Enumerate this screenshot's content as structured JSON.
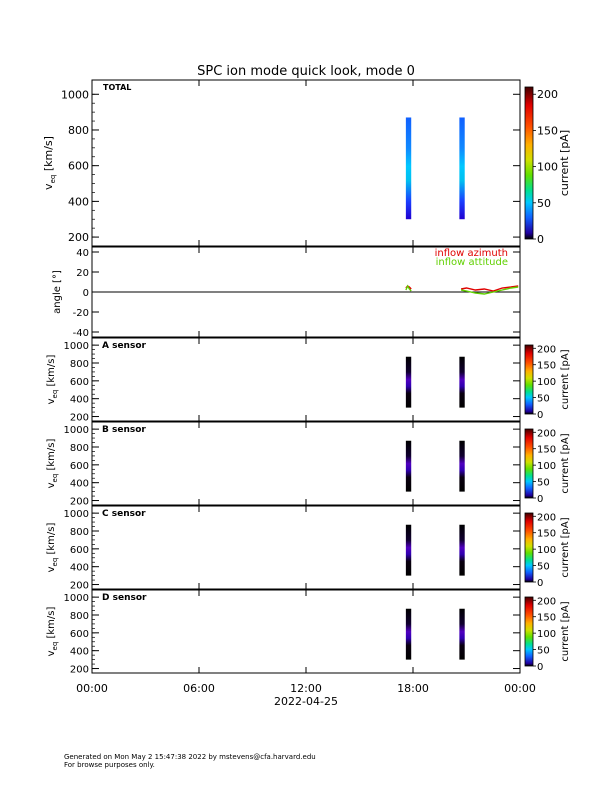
{
  "title": "SPC ion mode quick look, mode 0",
  "footer": {
    "line1": "Generated on Mon May  2 15:47:38 2022 by mstevens@cfa.harvard.edu",
    "line2": "For browse purposes only."
  },
  "time_axis": {
    "ticks": [
      "00:00",
      "06:00",
      "12:00",
      "18:00",
      "00:00"
    ],
    "date_label": "2022-04-25"
  },
  "chart_data": [
    {
      "type": "heatmap",
      "panel": "TOTAL",
      "ylabel": "v_eq [km/s]",
      "ylim": [
        150,
        1080
      ],
      "yticks": [
        200,
        400,
        600,
        800,
        1000
      ],
      "colorbar": {
        "label": "current [pA]",
        "range": [
          0,
          210
        ],
        "ticks": [
          0,
          50,
          100,
          150,
          200
        ]
      },
      "intervals": [
        {
          "start_hour": 17.6,
          "end_hour": 17.9,
          "v_range": [
            300,
            870
          ],
          "peak_v": 600,
          "peak_current": 35
        },
        {
          "start_hour": 20.6,
          "end_hour": 20.9,
          "v_range": [
            300,
            870
          ],
          "peak_v": 600,
          "peak_current": 35
        }
      ]
    },
    {
      "type": "line",
      "panel": "angle",
      "ylabel": "angle [°]",
      "ylim": [
        -45,
        45
      ],
      "yticks": [
        -40,
        -20,
        0,
        20,
        40
      ],
      "series": [
        {
          "name": "inflow azimuth",
          "color": "#e00000",
          "points": [
            [
              17.6,
              4
            ],
            [
              17.7,
              6
            ],
            [
              17.8,
              5
            ],
            [
              17.9,
              3
            ],
            [
              20.7,
              3
            ],
            [
              21.0,
              4
            ],
            [
              21.5,
              2
            ],
            [
              22.0,
              3
            ],
            [
              22.5,
              1
            ],
            [
              23.0,
              4
            ],
            [
              23.5,
              5
            ],
            [
              23.9,
              6
            ]
          ]
        },
        {
          "name": "inflow attitude",
          "color": "#60d000",
          "points": [
            [
              17.6,
              2
            ],
            [
              17.7,
              6
            ],
            [
              17.8,
              3
            ],
            [
              17.9,
              1
            ],
            [
              20.7,
              2
            ],
            [
              21.0,
              1
            ],
            [
              21.5,
              -1
            ],
            [
              22.0,
              -2
            ],
            [
              22.5,
              0
            ],
            [
              23.0,
              2
            ],
            [
              23.5,
              4
            ],
            [
              23.9,
              5
            ]
          ]
        }
      ]
    },
    {
      "type": "heatmap",
      "panel": "A sensor",
      "ylabel": "v_eq [km/s]",
      "ylim": [
        150,
        1080
      ],
      "yticks": [
        200,
        400,
        600,
        800,
        1000
      ],
      "colorbar": {
        "label": "current [pA]",
        "range": [
          0,
          210
        ],
        "ticks": [
          0,
          50,
          100,
          150,
          200
        ]
      },
      "intervals": [
        {
          "start_hour": 17.6,
          "end_hour": 17.9,
          "v_range": [
            300,
            870
          ],
          "peak_v": 600,
          "peak_current": 8
        },
        {
          "start_hour": 20.6,
          "end_hour": 20.9,
          "v_range": [
            300,
            870
          ],
          "peak_v": 600,
          "peak_current": 8
        }
      ]
    },
    {
      "type": "heatmap",
      "panel": "B sensor",
      "ylabel": "v_eq [km/s]",
      "ylim": [
        150,
        1080
      ],
      "yticks": [
        200,
        400,
        600,
        800,
        1000
      ],
      "colorbar": {
        "label": "current [pA]",
        "range": [
          0,
          210
        ],
        "ticks": [
          0,
          50,
          100,
          150,
          200
        ]
      },
      "intervals": [
        {
          "start_hour": 17.6,
          "end_hour": 17.9,
          "v_range": [
            300,
            870
          ],
          "peak_v": 600,
          "peak_current": 8
        },
        {
          "start_hour": 20.6,
          "end_hour": 20.9,
          "v_range": [
            300,
            870
          ],
          "peak_v": 600,
          "peak_current": 8
        }
      ]
    },
    {
      "type": "heatmap",
      "panel": "C sensor",
      "ylabel": "v_eq [km/s]",
      "ylim": [
        150,
        1080
      ],
      "yticks": [
        200,
        400,
        600,
        800,
        1000
      ],
      "colorbar": {
        "label": "current [pA]",
        "range": [
          0,
          210
        ],
        "ticks": [
          0,
          50,
          100,
          150,
          200
        ]
      },
      "intervals": [
        {
          "start_hour": 17.6,
          "end_hour": 17.9,
          "v_range": [
            300,
            870
          ],
          "peak_v": 600,
          "peak_current": 8
        },
        {
          "start_hour": 20.6,
          "end_hour": 20.9,
          "v_range": [
            300,
            870
          ],
          "peak_v": 600,
          "peak_current": 8
        }
      ]
    },
    {
      "type": "heatmap",
      "panel": "D sensor",
      "ylabel": "v_eq [km/s]",
      "ylim": [
        150,
        1080
      ],
      "yticks": [
        200,
        400,
        600,
        800,
        1000
      ],
      "colorbar": {
        "label": "current [pA]",
        "range": [
          0,
          210
        ],
        "ticks": [
          0,
          50,
          100,
          150,
          200
        ]
      },
      "intervals": [
        {
          "start_hour": 17.6,
          "end_hour": 17.9,
          "v_range": [
            300,
            870
          ],
          "peak_v": 600,
          "peak_current": 10
        },
        {
          "start_hour": 20.6,
          "end_hour": 20.9,
          "v_range": [
            300,
            870
          ],
          "peak_v": 600,
          "peak_current": 10
        }
      ]
    }
  ]
}
